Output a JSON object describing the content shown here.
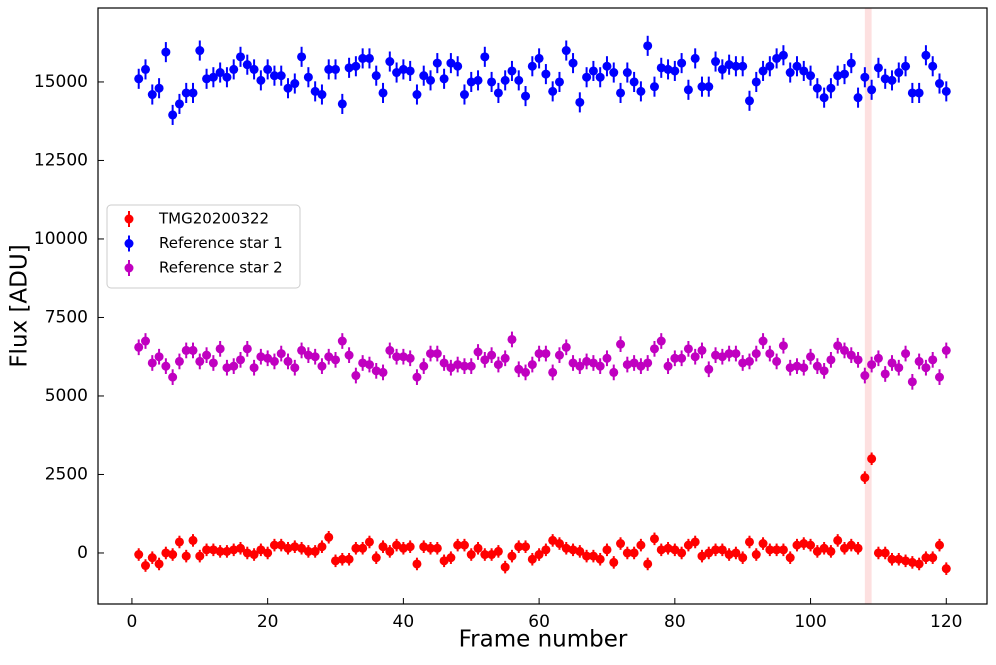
{
  "chart_data": {
    "type": "errorbar",
    "xlabel": "Frame number",
    "ylabel": "Flux [ADU]",
    "x": [
      1,
      2,
      3,
      4,
      5,
      6,
      7,
      8,
      9,
      10,
      11,
      12,
      13,
      14,
      15,
      16,
      17,
      18,
      19,
      20,
      21,
      22,
      23,
      24,
      25,
      26,
      27,
      28,
      29,
      30,
      31,
      32,
      33,
      34,
      35,
      36,
      37,
      38,
      39,
      40,
      41,
      42,
      43,
      44,
      45,
      46,
      47,
      48,
      49,
      50,
      51,
      52,
      53,
      54,
      55,
      56,
      57,
      58,
      59,
      60,
      61,
      62,
      63,
      64,
      65,
      66,
      67,
      68,
      69,
      70,
      71,
      72,
      73,
      74,
      75,
      76,
      77,
      78,
      79,
      80,
      81,
      82,
      83,
      84,
      85,
      86,
      87,
      88,
      89,
      90,
      91,
      92,
      93,
      94,
      95,
      96,
      97,
      98,
      99,
      100,
      101,
      102,
      103,
      104,
      105,
      106,
      107,
      108,
      109,
      110,
      111,
      112,
      113,
      114,
      115,
      116,
      117,
      118,
      119,
      120
    ],
    "series": [
      {
        "name": "TMG20200322",
        "color": "#ff0000",
        "error": 200,
        "values": [
          -50,
          -400,
          -150,
          -350,
          0,
          -50,
          350,
          -100,
          400,
          -100,
          100,
          100,
          50,
          50,
          100,
          150,
          0,
          -50,
          100,
          0,
          250,
          250,
          150,
          200,
          150,
          50,
          50,
          200,
          500,
          -250,
          -200,
          -200,
          150,
          150,
          350,
          -150,
          200,
          50,
          250,
          150,
          200,
          -350,
          200,
          150,
          150,
          -250,
          -150,
          250,
          250,
          -50,
          150,
          -50,
          -50,
          50,
          -450,
          -100,
          200,
          200,
          -200,
          -50,
          100,
          400,
          300,
          150,
          100,
          50,
          -100,
          -100,
          -200,
          100,
          -300,
          300,
          0,
          0,
          250,
          -350,
          450,
          100,
          150,
          100,
          0,
          250,
          350,
          -100,
          0,
          100,
          100,
          -50,
          0,
          -150,
          350,
          -50,
          300,
          100,
          100,
          100,
          -150,
          250,
          300,
          250,
          50,
          150,
          50,
          400,
          150,
          250,
          150,
          2400,
          3000,
          0,
          0,
          -200,
          -200,
          -250,
          -300,
          -350,
          -150,
          -150,
          250,
          -500
        ]
      },
      {
        "name": "Reference star 1",
        "color": "#0000ff",
        "error": 320,
        "values": [
          15100,
          15400,
          14600,
          14800,
          15950,
          13950,
          14300,
          14650,
          14650,
          16000,
          15100,
          15150,
          15300,
          15150,
          15400,
          15800,
          15550,
          15400,
          15050,
          15400,
          15200,
          15200,
          14800,
          14950,
          15800,
          15150,
          14700,
          14600,
          15400,
          15400,
          14300,
          15450,
          15500,
          15750,
          15750,
          15200,
          14650,
          15650,
          15300,
          15400,
          15350,
          14600,
          15200,
          15050,
          15600,
          15100,
          15600,
          15500,
          14600,
          15000,
          15050,
          15800,
          15000,
          14650,
          15050,
          15350,
          15050,
          14550,
          15500,
          15750,
          15250,
          14700,
          15000,
          16000,
          15600,
          14350,
          15150,
          15350,
          15150,
          15500,
          15300,
          14650,
          15300,
          15000,
          14700,
          16150,
          14850,
          15450,
          15400,
          15350,
          15600,
          14750,
          15750,
          14850,
          14850,
          15650,
          15400,
          15550,
          15500,
          15500,
          14400,
          15000,
          15350,
          15500,
          15750,
          15850,
          15300,
          15500,
          15350,
          15200,
          14800,
          14500,
          14800,
          15200,
          15250,
          15600,
          14500,
          15150,
          14750,
          15450,
          15100,
          15050,
          15300,
          15500,
          14650,
          14650,
          15850,
          15500,
          14950,
          14700
        ]
      },
      {
        "name": "Reference star 2",
        "color": "#c000c0",
        "error": 250,
        "values": [
          6550,
          6750,
          6050,
          6250,
          5950,
          5600,
          6100,
          6450,
          6450,
          6100,
          6300,
          6050,
          6500,
          5900,
          5950,
          6150,
          6500,
          5900,
          6250,
          6200,
          6100,
          6350,
          6100,
          5900,
          6450,
          6300,
          6250,
          5950,
          6250,
          6150,
          6750,
          6300,
          5650,
          6050,
          6000,
          5800,
          5750,
          6450,
          6250,
          6250,
          6200,
          5600,
          5950,
          6350,
          6350,
          6050,
          5900,
          6000,
          5950,
          5950,
          6400,
          6150,
          6300,
          6000,
          6200,
          6800,
          5850,
          5750,
          6000,
          6350,
          6350,
          5750,
          6300,
          6550,
          6050,
          5950,
          6100,
          6050,
          5950,
          6200,
          5750,
          6650,
          6000,
          6050,
          5950,
          6050,
          6500,
          6750,
          5950,
          6200,
          6200,
          6500,
          6250,
          6450,
          5850,
          6300,
          6250,
          6350,
          6350,
          6050,
          6100,
          6350,
          6750,
          6350,
          6100,
          6600,
          5900,
          5950,
          5900,
          6250,
          5950,
          5800,
          6150,
          6600,
          6450,
          6300,
          6150,
          5650,
          6000,
          6200,
          5700,
          6050,
          5900,
          6350,
          5450,
          6100,
          5900,
          6150,
          5600,
          6450
        ]
      }
    ],
    "span": [
      108,
      109
    ],
    "span_color": "#fde0e0",
    "xlim": [
      -5,
      126
    ],
    "ylim": [
      -1625,
      17355
    ],
    "xticks": [
      0,
      20,
      40,
      60,
      80,
      100,
      120
    ],
    "yticks": [
      0,
      2500,
      5000,
      7500,
      10000,
      12500,
      15000
    ],
    "legend": "center left"
  }
}
